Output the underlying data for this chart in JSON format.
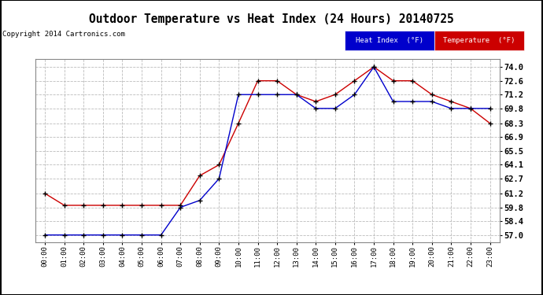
{
  "title": "Outdoor Temperature vs Heat Index (24 Hours) 20140725",
  "copyright": "Copyright 2014 Cartronics.com",
  "background_color": "#ffffff",
  "plot_background": "#ffffff",
  "grid_color": "#bbbbbb",
  "border_color": "#000000",
  "x_labels": [
    "00:00",
    "01:00",
    "02:00",
    "03:00",
    "04:00",
    "05:00",
    "06:00",
    "07:00",
    "08:00",
    "09:00",
    "10:00",
    "11:00",
    "12:00",
    "13:00",
    "14:00",
    "15:00",
    "16:00",
    "17:00",
    "18:00",
    "19:00",
    "20:00",
    "21:00",
    "22:00",
    "23:00"
  ],
  "y_ticks": [
    57.0,
    58.4,
    59.8,
    61.2,
    62.7,
    64.1,
    65.5,
    66.9,
    68.3,
    69.8,
    71.2,
    72.6,
    74.0
  ],
  "ylim": [
    56.3,
    74.8
  ],
  "temperature": [
    61.2,
    60.0,
    60.0,
    60.0,
    60.0,
    60.0,
    60.0,
    60.0,
    63.0,
    64.1,
    68.3,
    72.6,
    72.6,
    71.2,
    70.5,
    71.2,
    72.6,
    74.0,
    72.6,
    72.6,
    71.2,
    70.5,
    69.8,
    68.3
  ],
  "heat_index": [
    57.0,
    57.0,
    57.0,
    57.0,
    57.0,
    57.0,
    57.0,
    59.8,
    60.5,
    62.7,
    71.2,
    71.2,
    71.2,
    71.2,
    69.8,
    69.8,
    71.2,
    74.0,
    70.5,
    70.5,
    70.5,
    69.8,
    69.8,
    69.8
  ],
  "temp_color": "#cc0000",
  "heat_color": "#0000cc",
  "legend_heat_bg": "#0000cc",
  "legend_temp_bg": "#cc0000",
  "legend_heat_label": "Heat Index  (°F)",
  "legend_temp_label": "Temperature  (°F)"
}
